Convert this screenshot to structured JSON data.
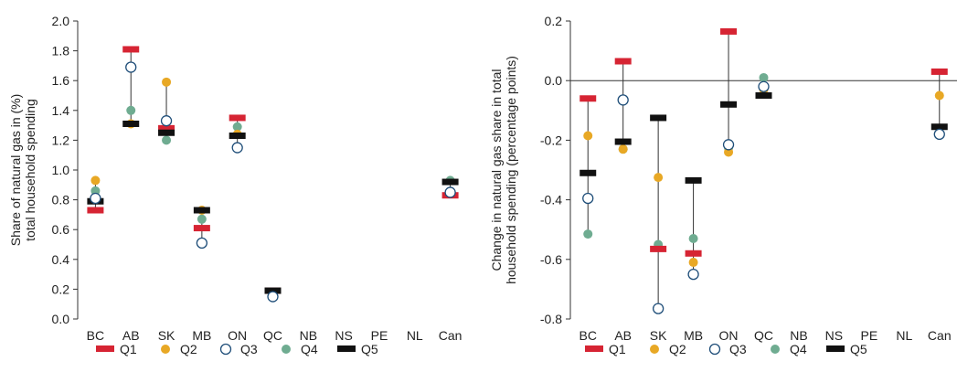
{
  "legend": {
    "items": [
      {
        "key": "Q1",
        "label": "Q1",
        "marker": "bar",
        "color": "#d62433"
      },
      {
        "key": "Q2",
        "label": "Q2",
        "marker": "dot",
        "color": "#e8a825"
      },
      {
        "key": "Q3",
        "label": "Q3",
        "marker": "ring",
        "color": "#1f4e79"
      },
      {
        "key": "Q4",
        "label": "Q4",
        "marker": "dot",
        "color": "#6fac91"
      },
      {
        "key": "Q5",
        "label": "Q5",
        "marker": "bar",
        "color": "#111111"
      }
    ]
  },
  "chart_data": [
    {
      "type": "dot-range",
      "title": "",
      "xlabel": "",
      "ylabel": "Share of natural gas in total household spending (%)",
      "ylim": [
        0,
        2.0
      ],
      "yticks": [
        "2.0",
        "1.8",
        "1.6",
        "1.4",
        "1.2",
        "1.0",
        "0.8",
        "0.6",
        "0.4",
        "0.2",
        "0.0"
      ],
      "grid": false,
      "legend_position": "bottom",
      "categories": [
        "BC",
        "AB",
        "SK",
        "MB",
        "ON",
        "QC",
        "NB",
        "NS",
        "PE",
        "NL",
        "Can"
      ],
      "series": [
        {
          "name": "Q1",
          "values": [
            0.73,
            1.81,
            1.28,
            0.61,
            1.35,
            0.19,
            null,
            null,
            null,
            null,
            0.83
          ]
        },
        {
          "name": "Q2",
          "values": [
            0.93,
            1.31,
            1.59,
            0.73,
            1.24,
            0.17,
            null,
            null,
            null,
            null,
            0.85
          ]
        },
        {
          "name": "Q3",
          "values": [
            0.81,
            1.69,
            1.33,
            0.51,
            1.15,
            0.15,
            null,
            null,
            null,
            null,
            0.85
          ]
        },
        {
          "name": "Q4",
          "values": [
            0.86,
            1.4,
            1.2,
            0.67,
            1.29,
            0.16,
            null,
            null,
            null,
            null,
            0.93
          ]
        },
        {
          "name": "Q5",
          "values": [
            0.79,
            1.31,
            1.25,
            0.73,
            1.23,
            0.19,
            null,
            null,
            null,
            null,
            0.92
          ]
        }
      ]
    },
    {
      "type": "dot-range",
      "title": "",
      "xlabel": "",
      "ylabel": "Change in natural gas share in total household spending (percentage points)",
      "ylim": [
        -0.8,
        0.2
      ],
      "yticks": [
        "0.2",
        "0.0",
        "-0.2",
        "-0.4",
        "-0.6",
        "-0.8"
      ],
      "grid": false,
      "zero_line": true,
      "legend_position": "bottom",
      "categories": [
        "BC",
        "AB",
        "SK",
        "MB",
        "ON",
        "QC",
        "NB",
        "NS",
        "PE",
        "NL",
        "Can"
      ],
      "series": [
        {
          "name": "Q1",
          "values": [
            -0.06,
            0.065,
            -0.565,
            -0.58,
            0.165,
            -0.05,
            null,
            null,
            null,
            null,
            0.03
          ]
        },
        {
          "name": "Q2",
          "values": [
            -0.185,
            -0.23,
            -0.325,
            -0.61,
            -0.24,
            -0.03,
            null,
            null,
            null,
            null,
            -0.05
          ]
        },
        {
          "name": "Q3",
          "values": [
            -0.395,
            -0.065,
            -0.765,
            -0.65,
            -0.215,
            -0.02,
            null,
            null,
            null,
            null,
            -0.18
          ]
        },
        {
          "name": "Q4",
          "values": [
            -0.515,
            -0.23,
            -0.55,
            -0.53,
            -0.225,
            0.01,
            null,
            null,
            null,
            null,
            -0.18
          ]
        },
        {
          "name": "Q5",
          "values": [
            -0.31,
            -0.205,
            -0.125,
            -0.335,
            -0.08,
            -0.05,
            null,
            null,
            null,
            null,
            -0.155
          ]
        }
      ]
    }
  ]
}
